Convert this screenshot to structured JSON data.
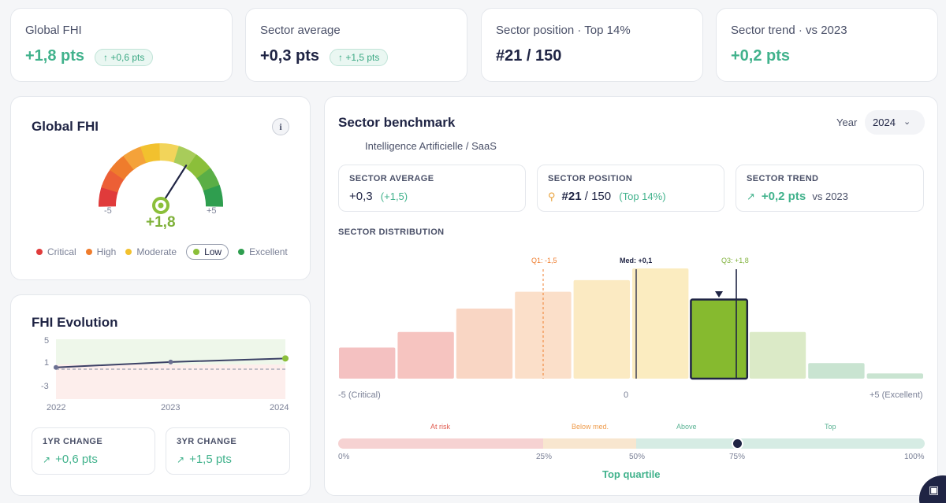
{
  "kpis": [
    {
      "label": "Global FHI",
      "value": "+1,8 pts",
      "delta": "+0,6 pts"
    },
    {
      "label": "Sector average",
      "value": "+0,3 pts",
      "delta": "+1,5 pts"
    },
    {
      "label": "Sector position · Top 14%",
      "value": "#21 / 150"
    },
    {
      "label": "Sector trend · vs 2023",
      "value": "+0,2 pts"
    }
  ],
  "gauge": {
    "title": "Global FHI",
    "value": "+1,8",
    "min_label": "-5",
    "max_label": "+5",
    "value_num": 1.8,
    "legend": [
      {
        "label": "Critical",
        "color": "#e03b3b"
      },
      {
        "label": "High",
        "color": "#ef7c2c"
      },
      {
        "label": "Moderate",
        "color": "#f2c12e"
      },
      {
        "label": "Low",
        "color": "#8bbf3a"
      },
      {
        "label": "Excellent",
        "color": "#2f9e4f"
      }
    ],
    "selected": "Low"
  },
  "evolution": {
    "title": "FHI Evolution",
    "y_ticks": [
      "5",
      "1",
      "-3"
    ],
    "x_ticks": [
      "2022",
      "2023",
      "2024"
    ],
    "change_1yr_label": "1YR CHANGE",
    "change_1yr_value": "+0,6 pts",
    "change_3yr_label": "3YR CHANGE",
    "change_3yr_value": "+1,5 pts"
  },
  "benchmark": {
    "title": "Sector benchmark",
    "subtitle": "Intelligence Artificielle / SaaS",
    "year_label": "Year",
    "year_value": "2024",
    "sector_average_label": "SECTOR AVERAGE",
    "sector_average_value": "+0,3",
    "sector_average_delta": "(+1,5)",
    "sector_position_label": "SECTOR POSITION",
    "sector_position_rank": "#21",
    "sector_position_total": "/ 150",
    "sector_position_top": "(Top 14%)",
    "sector_trend_label": "SECTOR TREND",
    "sector_trend_value": "+0,2 pts",
    "sector_trend_vs": "vs 2023",
    "distribution_label": "SECTOR DISTRIBUTION",
    "q1_label": "Q1: -1,5",
    "med_label": "Med: +0,1",
    "q3_label": "Q3: +1,8",
    "axis_left": "-5 (Critical)",
    "axis_mid": "0",
    "axis_right": "+5 (Excellent)",
    "zone_labels": [
      "At risk",
      "Below med.",
      "Above",
      "Top"
    ],
    "pct_labels": [
      "0%",
      "25%",
      "50%",
      "75%",
      "100%"
    ],
    "quartile_text": "Top quartile"
  },
  "chart_data": [
    {
      "type": "line",
      "x": [
        "2022",
        "2023",
        "2024"
      ],
      "series": [
        {
          "values": [
            0.3,
            1.2,
            1.8
          ]
        }
      ],
      "ylim": [
        -5,
        5
      ],
      "y_ticks": [
        5,
        1,
        -3
      ]
    },
    {
      "type": "bar",
      "values": [
        24,
        36,
        54,
        67,
        76,
        85,
        61,
        36,
        12,
        4
      ],
      "highlighted_index": 6,
      "xlabel": "",
      "ylabel": ""
    }
  ]
}
